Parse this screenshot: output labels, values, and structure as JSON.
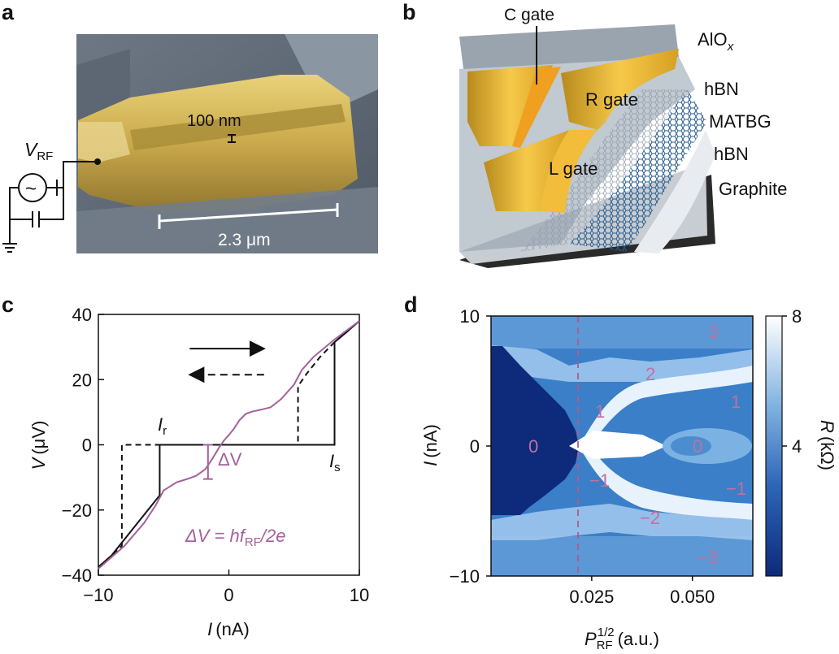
{
  "panels": {
    "a": {
      "letter": "a",
      "scale_small": "100 nm",
      "scale_large": "2.3 μm",
      "source_label": "V",
      "source_sub": "RF",
      "source_symbol": "~"
    },
    "b": {
      "letter": "b",
      "layers": [
        "AlO",
        "hBN",
        "MATBG",
        "hBN",
        "Graphite"
      ],
      "alox_sub": "x",
      "gates": [
        "C gate",
        "R gate",
        "L gate"
      ]
    },
    "c": {
      "letter": "c",
      "ylabel_var": "V",
      "ylabel_unit": "(μV)",
      "xlabel_var": "I",
      "xlabel_unit": "(nA)",
      "label_ir": "I",
      "label_ir_sub": "r",
      "label_is": "I",
      "label_is_sub": "s",
      "label_dv": "ΔV",
      "formula_lhs": "ΔV = hf",
      "formula_sub": "RF",
      "formula_rhs": "/2e"
    },
    "d": {
      "letter": "d",
      "ylabel_var": "I",
      "ylabel_unit": "(nA)",
      "xlabel_var": "P",
      "xlabel_sup": "1/2",
      "xlabel_sub": "RF",
      "xlabel_unit": "(a.u.)",
      "colorbar_var": "R",
      "colorbar_unit": "(kΩ)",
      "step_labels_left": [
        "0",
        "1",
        "−1",
        "2",
        "−2",
        "3",
        "−3"
      ],
      "step_labels_right": [
        "0",
        "1",
        "−1"
      ]
    }
  },
  "chart_data": [
    {
      "type": "line",
      "panel": "c",
      "xlabel": "I (nA)",
      "ylabel": "V (μV)",
      "xlim": [
        -10,
        10
      ],
      "ylim": [
        -40,
        40
      ],
      "xticks": [
        -10,
        0,
        10
      ],
      "yticks": [
        -40,
        -20,
        0,
        20,
        40
      ],
      "xtick_labels": [
        "−10",
        "0",
        "10"
      ],
      "ytick_labels": [
        "−40",
        "−20",
        "0",
        "20",
        "40"
      ],
      "colors": {
        "solid": "#111111",
        "dashed": "#111111",
        "rf": "#a5609c"
      },
      "series": [
        {
          "style": "solid",
          "x": [
            -10,
            -9,
            -8,
            -7,
            -6,
            -5.3,
            -5.3,
            8.1,
            8.1,
            9,
            10
          ],
          "y": [
            -37.5,
            -34,
            -29,
            -24,
            -19,
            -15.5,
            0,
            0,
            31.5,
            34.5,
            38
          ]
        },
        {
          "style": "dashed",
          "x": [
            -10,
            -9,
            -8.2,
            -8.2,
            5.3,
            5.3,
            6,
            7,
            8.1,
            9,
            10
          ],
          "y": [
            -37.5,
            -34,
            -31,
            0,
            0,
            18,
            22,
            27,
            31.5,
            34.5,
            38
          ]
        },
        {
          "style": "rf",
          "x": [
            -10,
            -8,
            -6.5,
            -5.6,
            -5.0,
            -4.0,
            -3.2,
            -2.5,
            -1.8,
            -1.3,
            -0.8,
            -0.4,
            0,
            0.4,
            0.8,
            1.3,
            1.8,
            2.5,
            3.2,
            4.0,
            5.0,
            5.6,
            6.5,
            8,
            10
          ],
          "y": [
            -38,
            -31,
            -24,
            -18.5,
            -14,
            -11.5,
            -10.5,
            -9.5,
            -7.5,
            -4.5,
            -1.2,
            1.2,
            3,
            5,
            7.5,
            9.5,
            10.2,
            10.8,
            11.5,
            14,
            18.5,
            23,
            27,
            32,
            38
          ]
        }
      ],
      "arrows": [
        {
          "direction": "right",
          "style": "solid",
          "x": [
            -3,
            2.7
          ],
          "y": 29.5
        },
        {
          "direction": "left",
          "style": "dashed",
          "x": [
            -3,
            2.7
          ],
          "y": 21.5
        }
      ],
      "annotations": {
        "dv_x": -1.6,
        "dv_y": [
          0,
          -10.5
        ]
      }
    },
    {
      "type": "heatmap",
      "panel": "d",
      "xlabel": "P_RF^1/2 (a.u.)",
      "ylabel": "I (nA)",
      "xlim": [
        0,
        0.065
      ],
      "ylim": [
        -10,
        10
      ],
      "xticks": [
        0.025,
        0.05
      ],
      "xtick_labels": [
        "0.025",
        "0.050"
      ],
      "yticks": [
        -10,
        0,
        10
      ],
      "ytick_labels": [
        "−10",
        "0",
        "10"
      ],
      "colorbar": {
        "label": "R (kΩ)",
        "min": 0,
        "max": 8,
        "ticks": [
          4,
          8
        ],
        "tick_labels": [
          "4",
          "8"
        ]
      },
      "vline_x": 0.022,
      "colors": {
        "dark": "#0e2a7a",
        "mid": "#3a7fc8",
        "light": "#ffffff",
        "label": "#c0719f",
        "vline": "#b05a8a"
      }
    }
  ]
}
